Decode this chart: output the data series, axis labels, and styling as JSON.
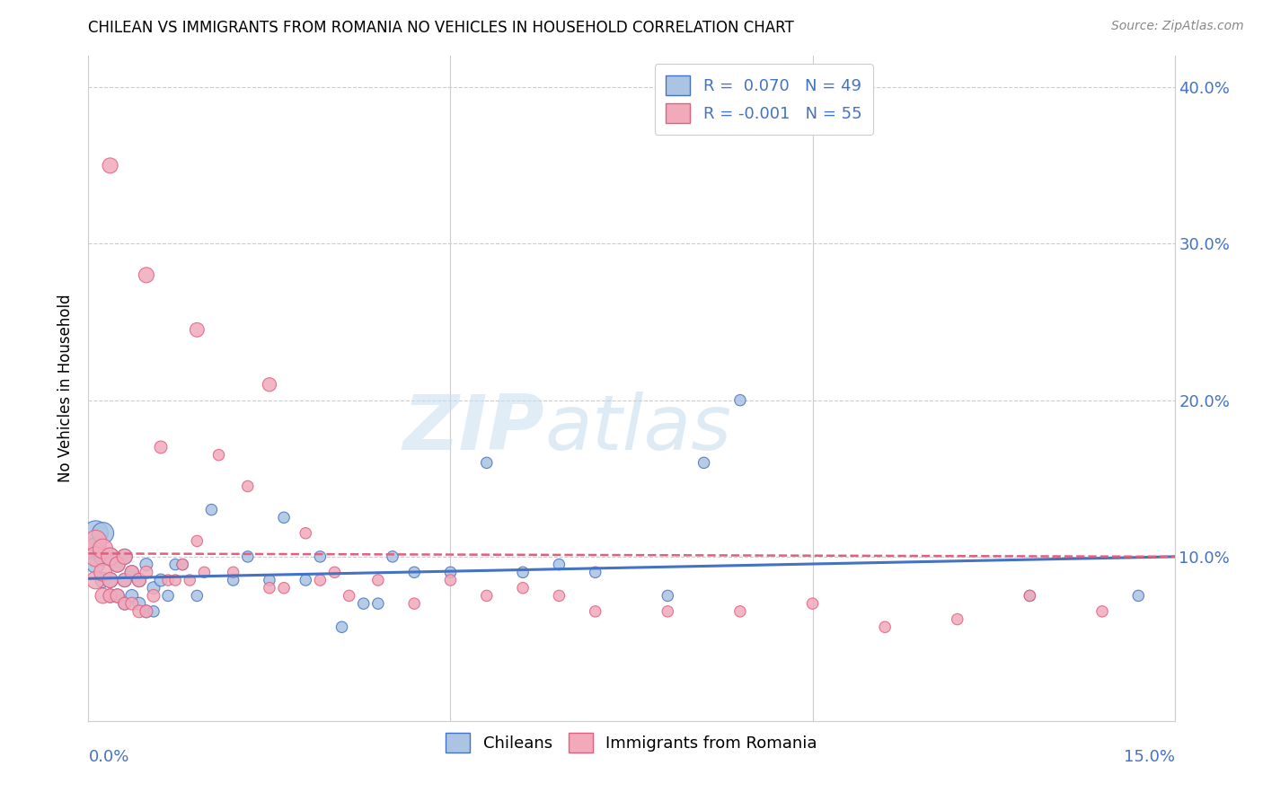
{
  "title": "CHILEAN VS IMMIGRANTS FROM ROMANIA NO VEHICLES IN HOUSEHOLD CORRELATION CHART",
  "source": "Source: ZipAtlas.com",
  "ylabel": "No Vehicles in Household",
  "xlim": [
    0.0,
    0.15
  ],
  "ylim": [
    -0.005,
    0.42
  ],
  "chilean_color": "#aac4e2",
  "romanian_color": "#f2aabb",
  "chilean_line_color": "#4472c4",
  "romanian_line_color": "#e06080",
  "watermark_zip": "ZIP",
  "watermark_atlas": "atlas",
  "chileans_x": [
    0.001,
    0.001,
    0.001,
    0.002,
    0.002,
    0.002,
    0.003,
    0.003,
    0.003,
    0.004,
    0.004,
    0.005,
    0.005,
    0.005,
    0.006,
    0.006,
    0.007,
    0.007,
    0.008,
    0.008,
    0.009,
    0.009,
    0.01,
    0.011,
    0.012,
    0.013,
    0.015,
    0.017,
    0.02,
    0.022,
    0.025,
    0.027,
    0.03,
    0.032,
    0.035,
    0.038,
    0.04,
    0.042,
    0.045,
    0.05,
    0.055,
    0.06,
    0.065,
    0.07,
    0.08,
    0.085,
    0.09,
    0.13,
    0.145
  ],
  "chileans_y": [
    0.115,
    0.105,
    0.095,
    0.115,
    0.1,
    0.085,
    0.1,
    0.085,
    0.075,
    0.095,
    0.075,
    0.1,
    0.085,
    0.07,
    0.09,
    0.075,
    0.085,
    0.07,
    0.095,
    0.065,
    0.08,
    0.065,
    0.085,
    0.075,
    0.095,
    0.095,
    0.075,
    0.13,
    0.085,
    0.1,
    0.085,
    0.125,
    0.085,
    0.1,
    0.055,
    0.07,
    0.07,
    0.1,
    0.09,
    0.09,
    0.16,
    0.09,
    0.095,
    0.09,
    0.075,
    0.16,
    0.2,
    0.075,
    0.075
  ],
  "romanians_x": [
    0.001,
    0.001,
    0.001,
    0.002,
    0.002,
    0.002,
    0.003,
    0.003,
    0.003,
    0.004,
    0.004,
    0.005,
    0.005,
    0.005,
    0.006,
    0.006,
    0.007,
    0.007,
    0.008,
    0.008,
    0.009,
    0.01,
    0.011,
    0.012,
    0.013,
    0.014,
    0.015,
    0.016,
    0.018,
    0.02,
    0.022,
    0.025,
    0.027,
    0.03,
    0.032,
    0.034,
    0.036,
    0.04,
    0.045,
    0.05,
    0.055,
    0.06,
    0.065,
    0.07,
    0.08,
    0.09,
    0.1,
    0.11,
    0.12,
    0.13,
    0.14,
    0.003,
    0.008,
    0.015,
    0.025
  ],
  "romanians_y": [
    0.11,
    0.1,
    0.085,
    0.105,
    0.09,
    0.075,
    0.1,
    0.085,
    0.075,
    0.095,
    0.075,
    0.1,
    0.085,
    0.07,
    0.09,
    0.07,
    0.085,
    0.065,
    0.09,
    0.065,
    0.075,
    0.17,
    0.085,
    0.085,
    0.095,
    0.085,
    0.11,
    0.09,
    0.165,
    0.09,
    0.145,
    0.08,
    0.08,
    0.115,
    0.085,
    0.09,
    0.075,
    0.085,
    0.07,
    0.085,
    0.075,
    0.08,
    0.075,
    0.065,
    0.065,
    0.065,
    0.07,
    0.055,
    0.06,
    0.075,
    0.065,
    0.35,
    0.28,
    0.245,
    0.21
  ],
  "chilean_sizes": [
    400,
    300,
    200,
    300,
    200,
    150,
    200,
    150,
    120,
    150,
    120,
    150,
    120,
    100,
    120,
    100,
    120,
    100,
    100,
    100,
    100,
    80,
    100,
    80,
    80,
    80,
    80,
    80,
    80,
    80,
    80,
    80,
    80,
    80,
    80,
    80,
    80,
    80,
    80,
    80,
    80,
    80,
    80,
    80,
    80,
    80,
    80,
    80,
    80
  ],
  "romanian_sizes": [
    300,
    250,
    200,
    250,
    200,
    150,
    200,
    150,
    120,
    150,
    120,
    150,
    120,
    100,
    120,
    100,
    120,
    100,
    100,
    100,
    100,
    100,
    80,
    80,
    80,
    80,
    80,
    80,
    80,
    80,
    80,
    80,
    80,
    80,
    80,
    80,
    80,
    80,
    80,
    80,
    80,
    80,
    80,
    80,
    80,
    80,
    80,
    80,
    80,
    80,
    80,
    150,
    150,
    130,
    120
  ]
}
